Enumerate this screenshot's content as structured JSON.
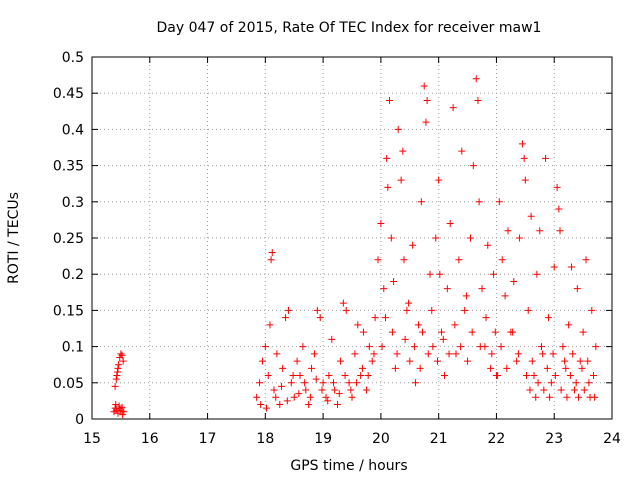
{
  "chart_data": {
    "type": "scatter",
    "title": "Day 047 of 2015, Rate Of TEC Index for receiver maw1",
    "xlabel": "GPS time / hours",
    "ylabel": "ROTI / TECUs",
    "xlim": [
      15,
      24
    ],
    "ylim": [
      0,
      0.5
    ],
    "xticks": [
      15,
      16,
      17,
      18,
      19,
      20,
      21,
      22,
      23,
      24
    ],
    "yticks": [
      0,
      0.05,
      0.1,
      0.15,
      0.2,
      0.25,
      0.3,
      0.35,
      0.4,
      0.45,
      0.5
    ],
    "xtick_labels": [
      "15",
      "16",
      "17",
      "18",
      "19",
      "20",
      "21",
      "22",
      "23",
      "24"
    ],
    "ytick_labels": [
      "0",
      "0.05",
      "0.1",
      "0.15",
      "0.2",
      "0.25",
      "0.3",
      "0.35",
      "0.4",
      "0.45",
      "0.5"
    ],
    "grid": true,
    "marker": "+",
    "color": "#ff0000",
    "series": [
      {
        "name": "ROTI",
        "points": [
          [
            15.38,
            0.01
          ],
          [
            15.4,
            0.015
          ],
          [
            15.42,
            0.012
          ],
          [
            15.45,
            0.008
          ],
          [
            15.48,
            0.014
          ],
          [
            15.5,
            0.011
          ],
          [
            15.52,
            0.016
          ],
          [
            15.55,
            0.01
          ],
          [
            15.41,
            0.02
          ],
          [
            15.47,
            0.018
          ],
          [
            15.53,
            0.006
          ],
          [
            15.4,
            0.045
          ],
          [
            15.42,
            0.055
          ],
          [
            15.44,
            0.065
          ],
          [
            15.46,
            0.075
          ],
          [
            15.48,
            0.085
          ],
          [
            15.5,
            0.09
          ],
          [
            15.52,
            0.088
          ],
          [
            15.54,
            0.08
          ],
          [
            15.45,
            0.07
          ],
          [
            15.43,
            0.06
          ],
          [
            17.85,
            0.03
          ],
          [
            17.9,
            0.05
          ],
          [
            17.95,
            0.08
          ],
          [
            18.0,
            0.1
          ],
          [
            18.05,
            0.06
          ],
          [
            18.08,
            0.13
          ],
          [
            18.1,
            0.22
          ],
          [
            18.12,
            0.23
          ],
          [
            18.15,
            0.04
          ],
          [
            18.2,
            0.09
          ],
          [
            18.25,
            0.02
          ],
          [
            18.3,
            0.07
          ],
          [
            18.35,
            0.14
          ],
          [
            18.4,
            0.15
          ],
          [
            18.45,
            0.05
          ],
          [
            18.5,
            0.03
          ],
          [
            18.55,
            0.08
          ],
          [
            18.6,
            0.06
          ],
          [
            18.65,
            0.1
          ],
          [
            18.7,
            0.04
          ],
          [
            18.75,
            0.02
          ],
          [
            18.8,
            0.07
          ],
          [
            18.85,
            0.09
          ],
          [
            18.9,
            0.15
          ],
          [
            18.95,
            0.14
          ],
          [
            19.0,
            0.05
          ],
          [
            19.05,
            0.03
          ],
          [
            19.1,
            0.06
          ],
          [
            19.15,
            0.11
          ],
          [
            19.2,
            0.04
          ],
          [
            19.25,
            0.02
          ],
          [
            19.3,
            0.08
          ],
          [
            19.35,
            0.16
          ],
          [
            19.4,
            0.15
          ],
          [
            19.45,
            0.05
          ],
          [
            19.5,
            0.03
          ],
          [
            19.55,
            0.09
          ],
          [
            19.6,
            0.13
          ],
          [
            19.65,
            0.06
          ],
          [
            19.7,
            0.12
          ],
          [
            19.75,
            0.04
          ],
          [
            19.8,
            0.1
          ],
          [
            19.85,
            0.08
          ],
          [
            19.9,
            0.14
          ],
          [
            19.95,
            0.22
          ],
          [
            17.92,
            0.02
          ],
          [
            18.02,
            0.015
          ],
          [
            18.18,
            0.03
          ],
          [
            18.28,
            0.045
          ],
          [
            18.38,
            0.025
          ],
          [
            18.48,
            0.06
          ],
          [
            18.58,
            0.035
          ],
          [
            18.68,
            0.05
          ],
          [
            18.78,
            0.03
          ],
          [
            18.88,
            0.055
          ],
          [
            18.98,
            0.04
          ],
          [
            19.08,
            0.025
          ],
          [
            19.18,
            0.05
          ],
          [
            19.28,
            0.035
          ],
          [
            19.38,
            0.06
          ],
          [
            19.48,
            0.04
          ],
          [
            19.58,
            0.05
          ],
          [
            19.68,
            0.07
          ],
          [
            19.78,
            0.06
          ],
          [
            19.88,
            0.09
          ],
          [
            20.0,
            0.27
          ],
          [
            20.05,
            0.18
          ],
          [
            20.1,
            0.36
          ],
          [
            20.12,
            0.32
          ],
          [
            20.15,
            0.44
          ],
          [
            20.18,
            0.25
          ],
          [
            20.2,
            0.12
          ],
          [
            20.25,
            0.07
          ],
          [
            20.3,
            0.4
          ],
          [
            20.35,
            0.33
          ],
          [
            20.38,
            0.37
          ],
          [
            20.4,
            0.22
          ],
          [
            20.45,
            0.15
          ],
          [
            20.5,
            0.08
          ],
          [
            20.55,
            0.24
          ],
          [
            20.6,
            0.05
          ],
          [
            20.65,
            0.13
          ],
          [
            20.7,
            0.3
          ],
          [
            20.75,
            0.46
          ],
          [
            20.78,
            0.41
          ],
          [
            20.8,
            0.44
          ],
          [
            20.85,
            0.2
          ],
          [
            20.9,
            0.1
          ],
          [
            20.95,
            0.25
          ],
          [
            21.0,
            0.33
          ],
          [
            21.05,
            0.12
          ],
          [
            21.1,
            0.06
          ],
          [
            21.15,
            0.18
          ],
          [
            21.2,
            0.27
          ],
          [
            21.25,
            0.43
          ],
          [
            21.3,
            0.09
          ],
          [
            21.35,
            0.22
          ],
          [
            21.4,
            0.37
          ],
          [
            21.45,
            0.15
          ],
          [
            21.5,
            0.08
          ],
          [
            21.55,
            0.25
          ],
          [
            21.6,
            0.35
          ],
          [
            21.65,
            0.47
          ],
          [
            21.68,
            0.44
          ],
          [
            21.7,
            0.3
          ],
          [
            21.75,
            0.18
          ],
          [
            21.8,
            0.1
          ],
          [
            21.85,
            0.24
          ],
          [
            21.9,
            0.07
          ],
          [
            21.95,
            0.2
          ],
          [
            22.0,
            0.06
          ],
          [
            20.02,
            0.1
          ],
          [
            20.08,
            0.14
          ],
          [
            20.22,
            0.19
          ],
          [
            20.28,
            0.09
          ],
          [
            20.42,
            0.11
          ],
          [
            20.48,
            0.16
          ],
          [
            20.58,
            0.1
          ],
          [
            20.68,
            0.07
          ],
          [
            20.72,
            0.12
          ],
          [
            20.82,
            0.09
          ],
          [
            20.88,
            0.15
          ],
          [
            20.98,
            0.08
          ],
          [
            21.02,
            0.2
          ],
          [
            21.08,
            0.11
          ],
          [
            21.18,
            0.09
          ],
          [
            21.28,
            0.13
          ],
          [
            21.38,
            0.1
          ],
          [
            21.48,
            0.17
          ],
          [
            21.58,
            0.12
          ],
          [
            21.72,
            0.1
          ],
          [
            21.82,
            0.14
          ],
          [
            21.92,
            0.09
          ],
          [
            21.98,
            0.12
          ],
          [
            22.05,
            0.3
          ],
          [
            22.1,
            0.22
          ],
          [
            22.15,
            0.17
          ],
          [
            22.2,
            0.26
          ],
          [
            22.25,
            0.12
          ],
          [
            22.3,
            0.19
          ],
          [
            22.35,
            0.08
          ],
          [
            22.4,
            0.25
          ],
          [
            22.45,
            0.38
          ],
          [
            22.48,
            0.36
          ],
          [
            22.5,
            0.33
          ],
          [
            22.55,
            0.15
          ],
          [
            22.6,
            0.28
          ],
          [
            22.65,
            0.06
          ],
          [
            22.7,
            0.2
          ],
          [
            22.75,
            0.26
          ],
          [
            22.8,
            0.09
          ],
          [
            22.85,
            0.36
          ],
          [
            22.9,
            0.14
          ],
          [
            22.95,
            0.05
          ],
          [
            23.0,
            0.21
          ],
          [
            23.05,
            0.32
          ],
          [
            23.08,
            0.29
          ],
          [
            23.1,
            0.26
          ],
          [
            23.15,
            0.1
          ],
          [
            23.2,
            0.07
          ],
          [
            23.25,
            0.13
          ],
          [
            23.3,
            0.21
          ],
          [
            23.35,
            0.04
          ],
          [
            23.4,
            0.18
          ],
          [
            23.45,
            0.08
          ],
          [
            23.5,
            0.12
          ],
          [
            23.55,
            0.22
          ],
          [
            23.6,
            0.05
          ],
          [
            23.65,
            0.15
          ],
          [
            23.7,
            0.03
          ],
          [
            22.02,
            0.06
          ],
          [
            22.08,
            0.1
          ],
          [
            22.18,
            0.07
          ],
          [
            22.28,
            0.12
          ],
          [
            22.38,
            0.09
          ],
          [
            22.52,
            0.06
          ],
          [
            22.58,
            0.04
          ],
          [
            22.62,
            0.08
          ],
          [
            22.68,
            0.03
          ],
          [
            22.72,
            0.05
          ],
          [
            22.78,
            0.1
          ],
          [
            22.82,
            0.04
          ],
          [
            22.88,
            0.07
          ],
          [
            22.92,
            0.03
          ],
          [
            22.98,
            0.09
          ],
          [
            23.02,
            0.06
          ],
          [
            23.12,
            0.04
          ],
          [
            23.18,
            0.08
          ],
          [
            23.22,
            0.03
          ],
          [
            23.28,
            0.06
          ],
          [
            23.32,
            0.09
          ],
          [
            23.38,
            0.05
          ],
          [
            23.42,
            0.03
          ],
          [
            23.48,
            0.07
          ],
          [
            23.52,
            0.04
          ],
          [
            23.58,
            0.08
          ],
          [
            23.62,
            0.03
          ],
          [
            23.68,
            0.06
          ],
          [
            23.72,
            0.1
          ]
        ]
      }
    ]
  }
}
